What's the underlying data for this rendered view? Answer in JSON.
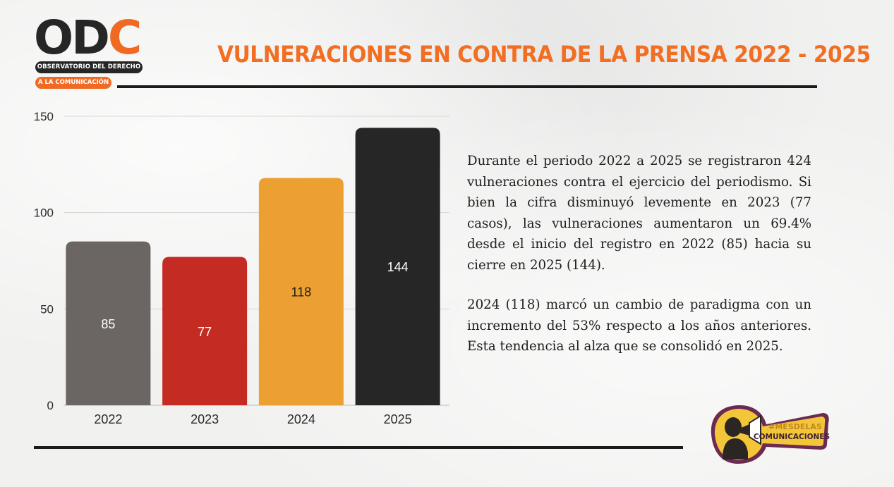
{
  "logo": {
    "letters_dark": "OD",
    "letters_accent": "C",
    "line1": "OBSERVATORIO DEL DERECHO",
    "line2": "A LA COMUNICACIÓN"
  },
  "header": {
    "title": "VULNERACIONES EN CONTRA DE LA PRENSA 2022 - 2025"
  },
  "colors": {
    "accent": "#f26e22",
    "bar_2022": "#6b6663",
    "bar_2023": "#c42b22",
    "bar_2024": "#eba031",
    "bar_2025": "#272626"
  },
  "chart_data": {
    "type": "bar",
    "categories": [
      "2022",
      "2023",
      "2024",
      "2025"
    ],
    "values": [
      85,
      77,
      118,
      144
    ],
    "data_labels": [
      "85",
      "77",
      "118",
      "144"
    ],
    "colors": [
      "#6b6663",
      "#c42b22",
      "#eba031",
      "#272626"
    ],
    "label_colors": [
      "#ffffff",
      "#ffffff",
      "#1e1e1e",
      "#ffffff"
    ],
    "ylim": [
      0,
      150
    ],
    "yticks": [
      0,
      50,
      100,
      150
    ],
    "ytick_labels": [
      "0",
      "50",
      "100",
      "150"
    ],
    "grid": true,
    "title": "",
    "xlabel": "",
    "ylabel": ""
  },
  "text": {
    "paragraph1": "Durante el periodo 2022 a 2025 se registraron 424 vulneraciones contra el ejercicio del periodismo. Si bien la cifra disminuyó levemente en 2023 (77 casos), las vulneraciones aumentaron un 69.4% desde el inicio del registro en 2022 (85) hacia su cierre en 2025 (144).",
    "paragraph2": "2024 (118) marcó un cambio de paradigma con un incremento del 53% respecto a los años anteriores. Esta tendencia al alza que se consolidó en 2025."
  },
  "badge": {
    "line1": "#MESDELAS",
    "line2": "COMUNICACIONES",
    "icon": "megaphone-person-icon"
  }
}
